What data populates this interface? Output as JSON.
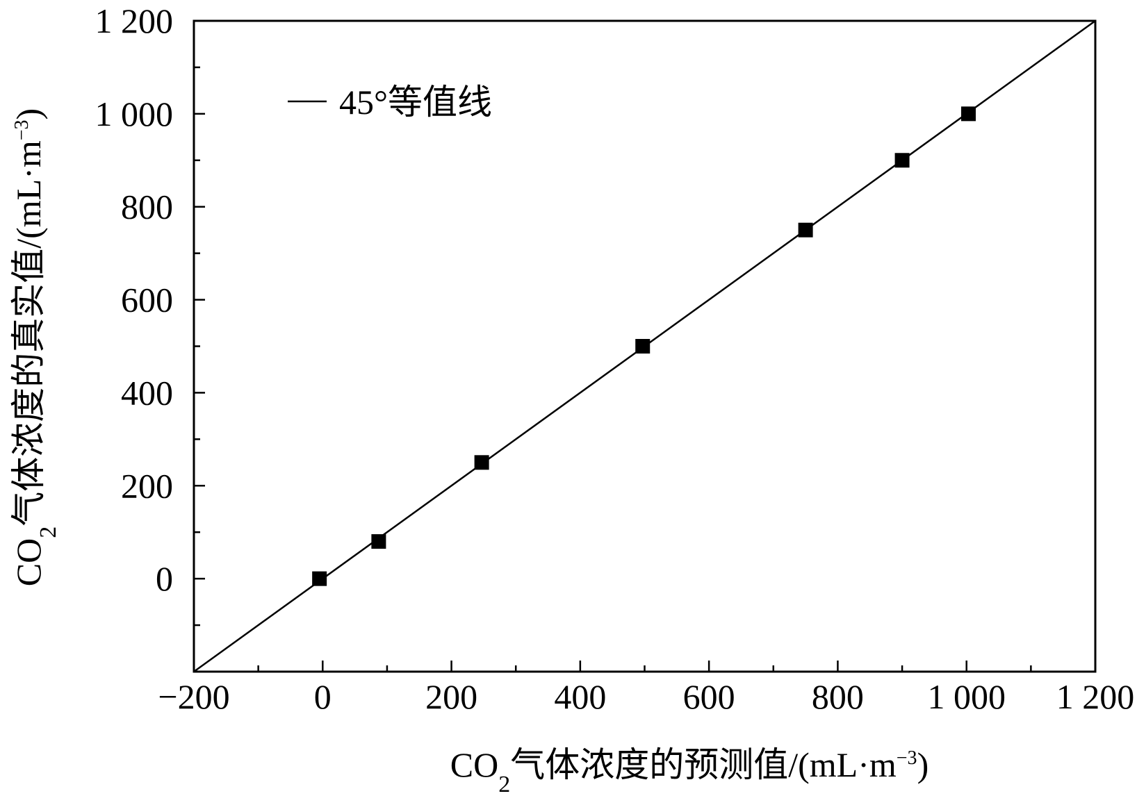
{
  "chart_data": {
    "type": "scatter",
    "title": "",
    "xlabel": {
      "prefix": "CO",
      "subscript": "2",
      "main": "气体浓度的预测值/(mL·m",
      "superscript": "−3",
      "suffix": ")"
    },
    "ylabel": {
      "prefix": "CO",
      "subscript": "2",
      "main": "气体浓度的真实值/(mL·m",
      "superscript": "−3",
      "suffix": ")"
    },
    "xlim": [
      -200,
      1200
    ],
    "ylim": [
      -200,
      1200
    ],
    "x_ticks": [
      -200,
      0,
      200,
      400,
      600,
      800,
      1000,
      1200
    ],
    "x_tick_labels": [
      "−200",
      "0",
      "200",
      "400",
      "600",
      "800",
      "1 000",
      "1 200"
    ],
    "y_ticks": [
      0,
      200,
      400,
      600,
      800,
      1000,
      1200
    ],
    "y_tick_labels": [
      "0",
      "200",
      "400",
      "600",
      "800",
      "1 000",
      "1 200"
    ],
    "x_minor_step": 100,
    "y_minor_step": 100,
    "grid": false,
    "legend": {
      "position": "top-left",
      "entries": [
        {
          "label": "45°等值线",
          "marker": "line"
        }
      ]
    },
    "reference_line": {
      "from": [
        -200,
        -200
      ],
      "to": [
        1200,
        1200
      ]
    },
    "series": [
      {
        "marker": "square",
        "color": "#000000",
        "points": [
          {
            "x": -5,
            "y": 0
          },
          {
            "x": 87,
            "y": 80
          },
          {
            "x": 247,
            "y": 250
          },
          {
            "x": 497,
            "y": 500
          },
          {
            "x": 750,
            "y": 750
          },
          {
            "x": 900,
            "y": 900
          },
          {
            "x": 1003,
            "y": 1000
          }
        ]
      }
    ]
  }
}
